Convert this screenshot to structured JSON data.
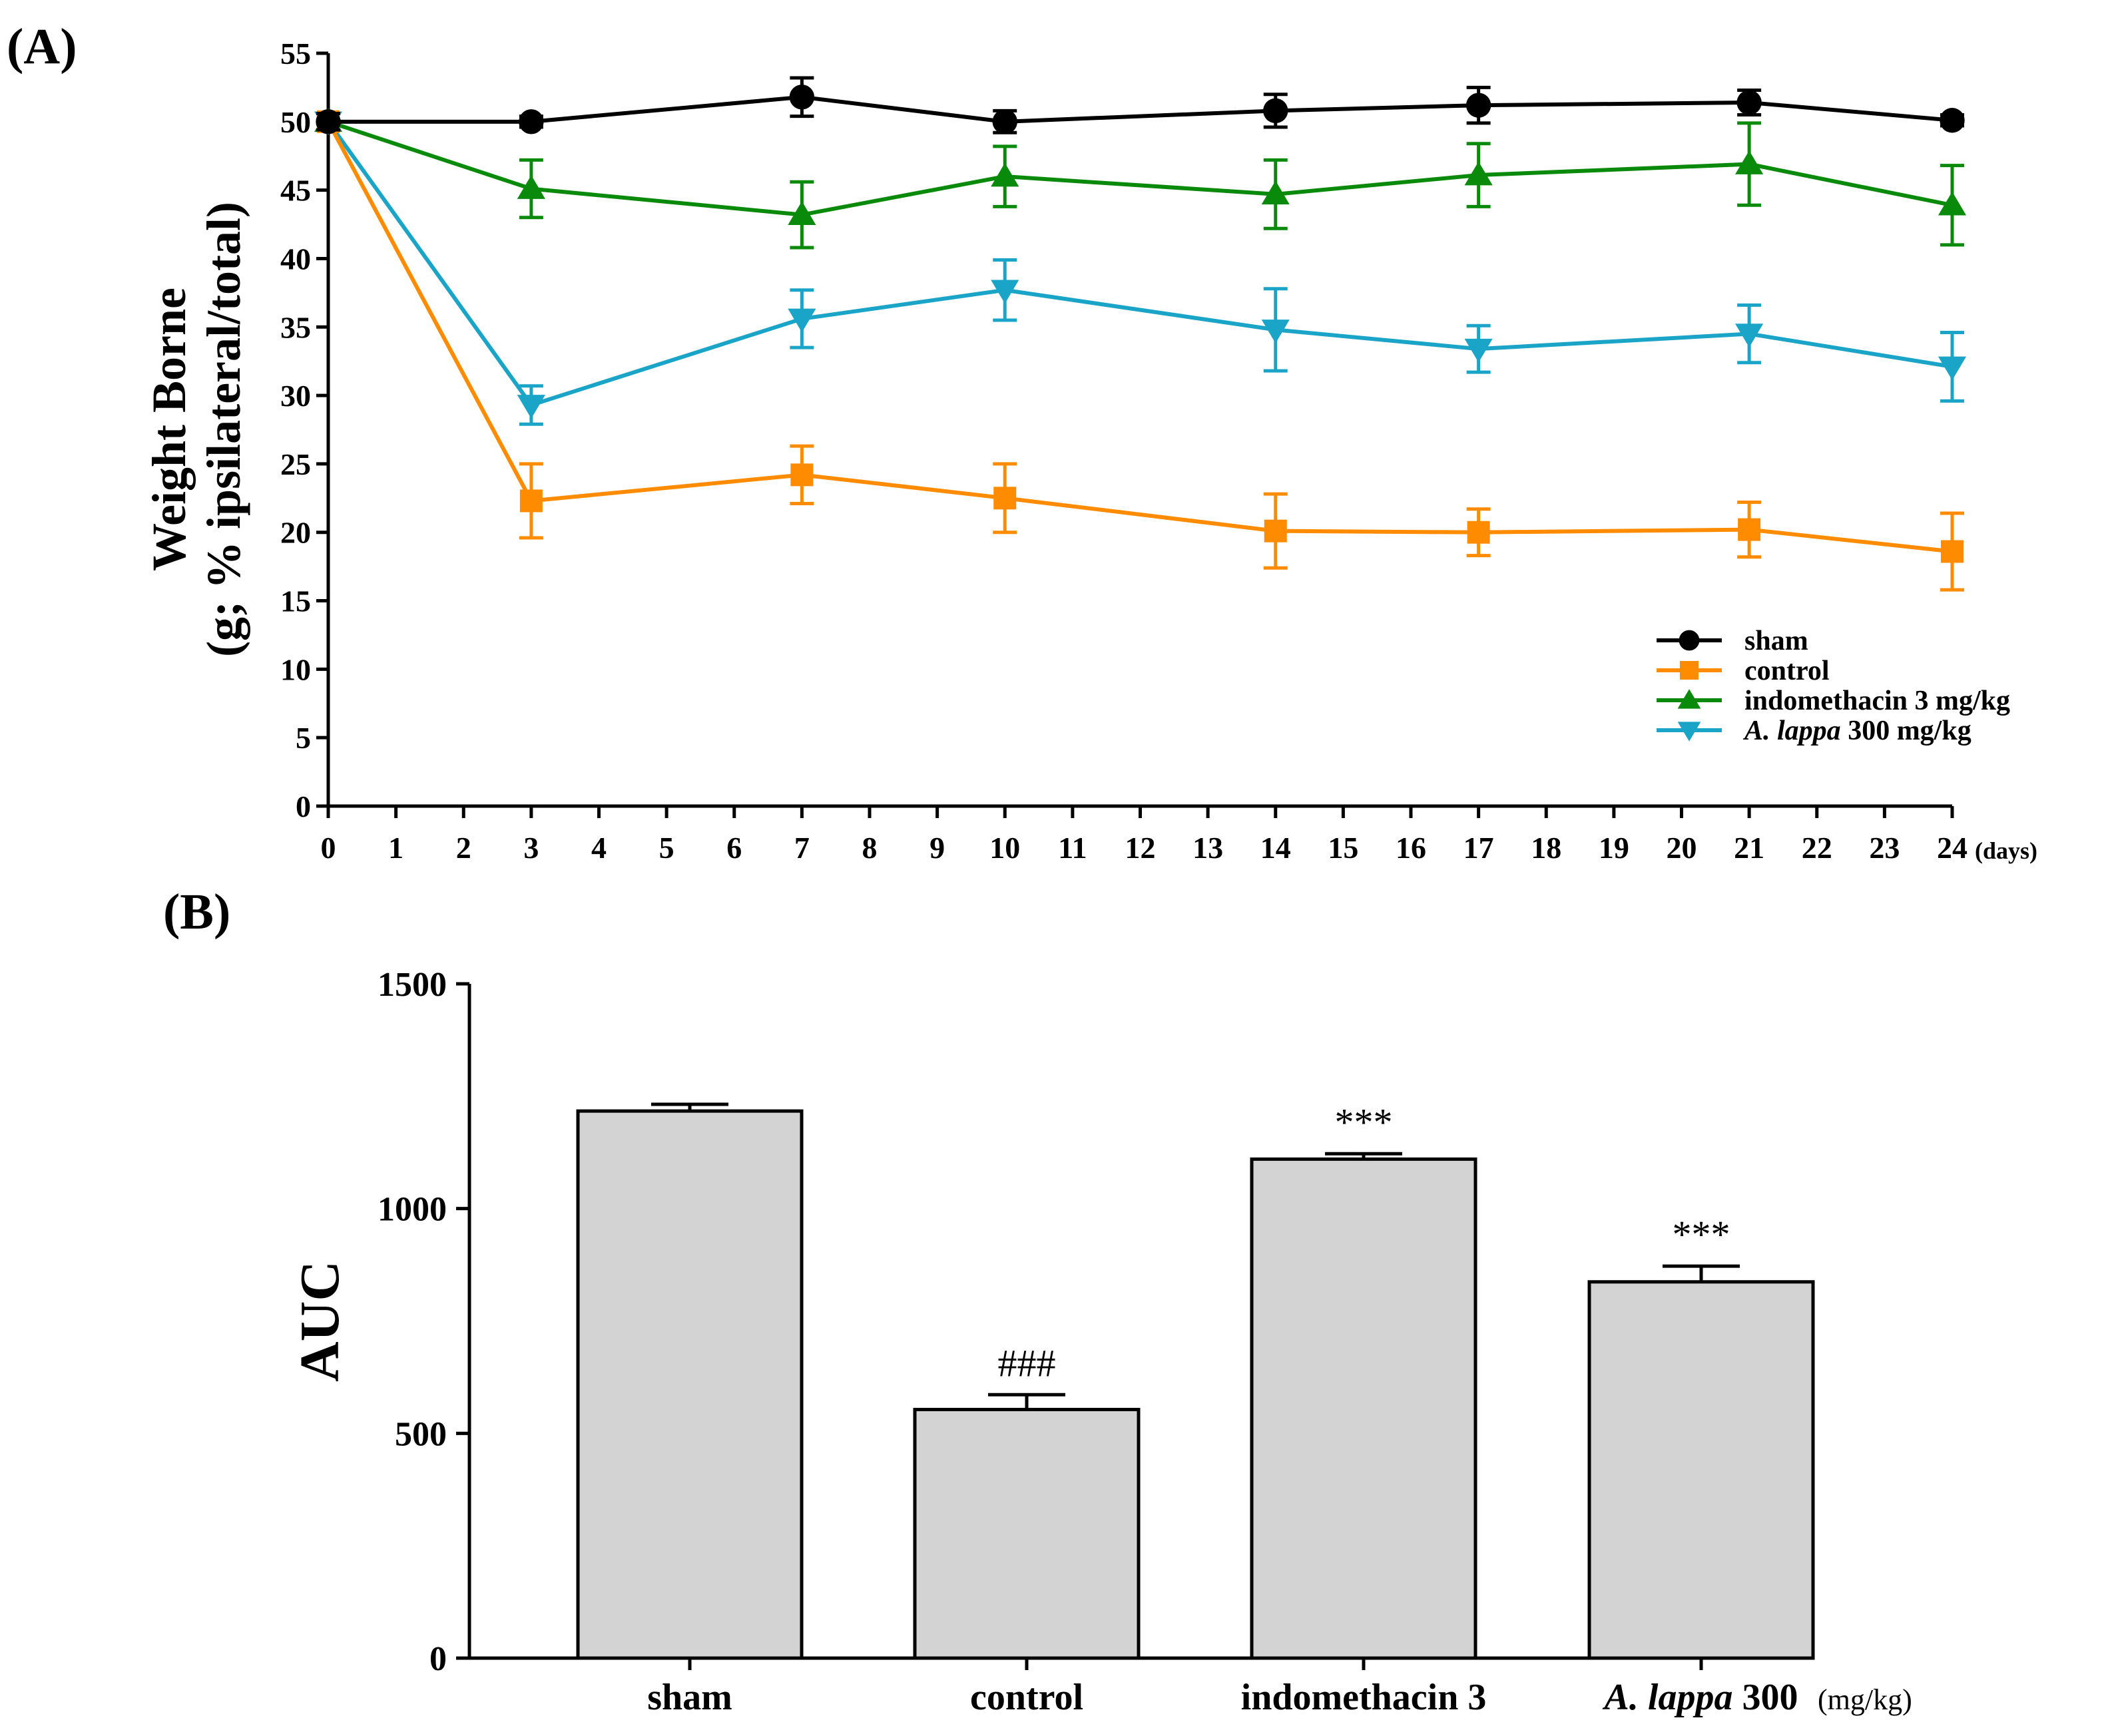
{
  "chart_data": [
    {
      "type": "line",
      "panel_label": "(A)",
      "ylabel_line1": "Weight Borne",
      "ylabel_line2": "(g; % ipsilateral/total)",
      "x_unit": "(days)",
      "x_ticks": [
        "0",
        "1",
        "2",
        "3",
        "4",
        "5",
        "6",
        "7",
        "8",
        "9",
        "10",
        "11",
        "12",
        "13",
        "14",
        "15",
        "16",
        "17",
        "18",
        "19",
        "20",
        "21",
        "22",
        "23",
        "24"
      ],
      "y_ticks": [
        "0",
        "5",
        "10",
        "15",
        "20",
        "25",
        "30",
        "35",
        "40",
        "45",
        "50",
        "55"
      ],
      "xlim": [
        0,
        24
      ],
      "ylim": [
        0,
        55
      ],
      "x": [
        0,
        3,
        7,
        10,
        14,
        17,
        21,
        24
      ],
      "series": [
        {
          "name": "sham",
          "legend_label": "sham",
          "color": "#000000",
          "marker": "circle",
          "values": [
            50,
            50,
            51.8,
            50,
            50.8,
            51.2,
            51.4,
            50.1
          ],
          "errors": [
            0.6,
            0.4,
            1.4,
            0.8,
            1.2,
            1.3,
            0.9,
            0.4
          ]
        },
        {
          "name": "control",
          "legend_label": "control",
          "color": "#FF8C00",
          "marker": "square",
          "values": [
            50,
            22.3,
            24.2,
            22.5,
            20.1,
            20.0,
            20.2,
            18.6
          ],
          "errors": [
            0.6,
            2.7,
            2.1,
            2.5,
            2.7,
            1.7,
            2.0,
            2.8
          ]
        },
        {
          "name": "indomethacin",
          "legend_label": "indomethacin 3 mg/kg",
          "color": "#0A8A0A",
          "marker": "triangle-up",
          "values": [
            50,
            45.1,
            43.2,
            46.0,
            44.7,
            46.1,
            46.9,
            43.9
          ],
          "errors": [
            0.6,
            2.1,
            2.4,
            2.2,
            2.5,
            2.3,
            3.0,
            2.9
          ]
        },
        {
          "name": "A. lappa",
          "legend_label_italic": "A. lappa",
          "legend_label_rest": " 300 mg/kg",
          "color": "#1AA5C8",
          "marker": "triangle-down",
          "values": [
            50,
            29.3,
            35.6,
            37.7,
            34.8,
            33.4,
            34.5,
            32.1
          ],
          "errors": [
            0.6,
            1.4,
            2.1,
            2.2,
            3.0,
            1.7,
            2.1,
            2.5
          ]
        }
      ]
    },
    {
      "type": "bar",
      "panel_label": "(B)",
      "ylabel": "AUC",
      "unit": "(mg/kg)",
      "y_ticks": [
        "0",
        "500",
        "1000",
        "1500"
      ],
      "ylim": [
        0,
        1500
      ],
      "categories": [
        "sham",
        "control",
        "indomethacin 3",
        "A. lappa 300"
      ],
      "category_parts": [
        {
          "italic": "",
          "rest": "sham"
        },
        {
          "italic": "",
          "rest": "control"
        },
        {
          "italic": "",
          "rest": "indomethacin 3"
        },
        {
          "italic": "A. lappa",
          "rest": " 300"
        }
      ],
      "values": [
        1217,
        553,
        1110,
        837
      ],
      "errors": [
        15,
        33,
        12,
        35
      ],
      "annotations": [
        "",
        "###",
        "***",
        "***"
      ],
      "bar_color": "#D3D3D3"
    }
  ]
}
